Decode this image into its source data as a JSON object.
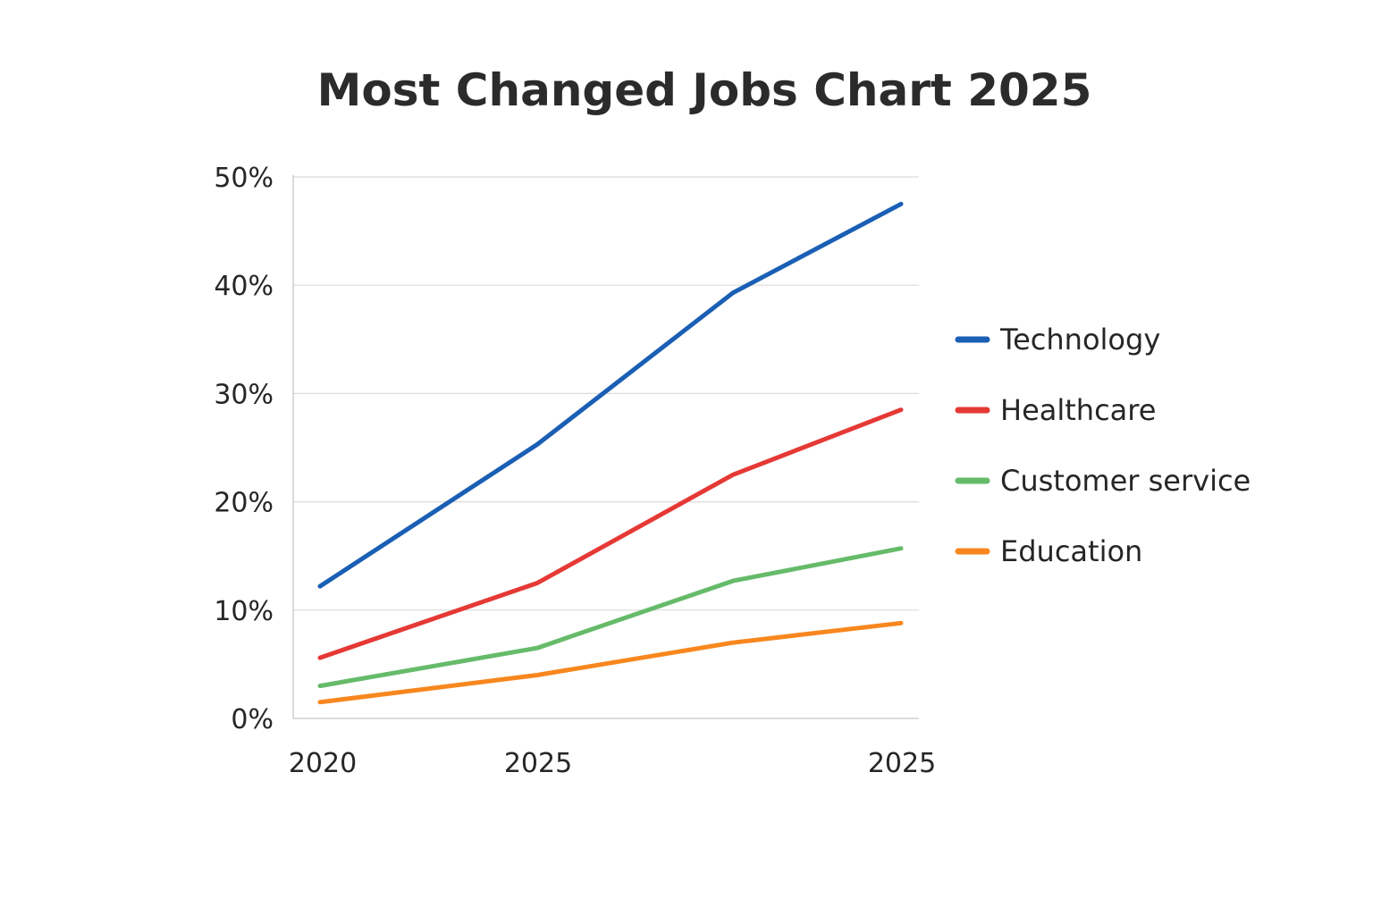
{
  "chart_data": {
    "type": "line",
    "title": "Most Changed Jobs Chart 2025",
    "xlabel": "",
    "ylabel": "",
    "x_tick_labels": [
      "2020",
      "2025",
      "",
      "2025"
    ],
    "y_tick_labels": [
      "0%",
      "10%",
      "20%",
      "30%",
      "40%",
      "50%"
    ],
    "y_ticks": [
      0,
      10,
      20,
      30,
      40,
      50
    ],
    "ylim": [
      0,
      50
    ],
    "grid": true,
    "legend_position": "right",
    "series": [
      {
        "name": "Technology",
        "color": "#1a5fb4",
        "values": [
          12.2,
          25.3,
          39.3,
          47.5
        ]
      },
      {
        "name": "Healthcare",
        "color": "#e53935",
        "values": [
          5.6,
          12.5,
          22.5,
          28.5
        ]
      },
      {
        "name": "Customer service",
        "color": "#66bb6a",
        "values": [
          3.0,
          6.5,
          12.7,
          15.7
        ]
      },
      {
        "name": "Education",
        "color": "#f7871e",
        "values": [
          1.5,
          4.0,
          7.0,
          8.8
        ]
      }
    ]
  }
}
